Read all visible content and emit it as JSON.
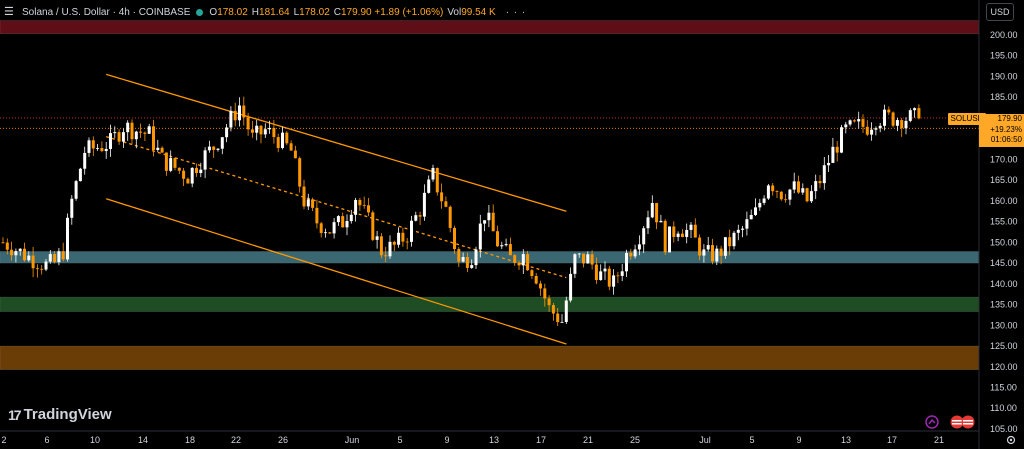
{
  "header": {
    "menu_icon": "hamburger-icon",
    "symbol_title": "Solana / U.S. Dollar · 4h · COINBASE",
    "status_color": "#26a69a",
    "ohlc": [
      {
        "label": "O",
        "value": "178.02"
      },
      {
        "label": "H",
        "value": "181.64"
      },
      {
        "label": "L",
        "value": "178.02"
      },
      {
        "label": "C",
        "value": "179.90 +1.89 (+1.06%)"
      },
      {
        "label": "Vol",
        "value": "99.54 K"
      }
    ],
    "more_label": "· · ·"
  },
  "price_scale": {
    "currency_button": "USD",
    "labels": [
      "200.00",
      "195.00",
      "190.00",
      "185.00",
      "180.00",
      "175.00",
      "170.00",
      "165.00",
      "160.00",
      "155.00",
      "150.00",
      "145.00",
      "140.00",
      "135.00",
      "130.00",
      "125.00",
      "120.00",
      "115.00",
      "110.00",
      "105.00"
    ]
  },
  "price_tag": {
    "symbol": "SOLUSD",
    "price": "179.90",
    "change": "+19.23%",
    "countdown": "01:06:50"
  },
  "time_axis": {
    "labels": [
      "2",
      "6",
      "10",
      "14",
      "18",
      "22",
      "26",
      "Jun",
      "5",
      "9",
      "13",
      "17",
      "21",
      "25",
      "Jul",
      "5",
      "9",
      "13",
      "17",
      "21"
    ],
    "settings_icon": "gear-icon"
  },
  "branding": {
    "logo_icon": "tradingview-logo-icon",
    "name": "TradingView"
  },
  "overlay_icons": [
    "purple-replay-icon",
    "flags-icon"
  ],
  "colors": {
    "background": "#000000",
    "bull": "#ffffff",
    "bear": "#ff9800",
    "channel": "#ff9800",
    "zone_red": "#5e0e17",
    "zone_teal": "#3a6772",
    "zone_green": "#1e4d24",
    "zone_orange": "#6b3d06"
  },
  "chart_data": {
    "type": "candlestick",
    "symbol": "Solana / U.S. Dollar",
    "interval": "4h",
    "exchange": "COINBASE",
    "ylim": [
      105,
      203
    ],
    "x_ticks": [
      "2",
      "6",
      "10",
      "14",
      "18",
      "22",
      "26",
      "Jun",
      "5",
      "9",
      "13",
      "17",
      "21",
      "25",
      "Jul",
      "5",
      "9",
      "13",
      "17",
      "21"
    ],
    "last_close": 179.9,
    "zones": [
      {
        "name": "resistance",
        "from": 200.3,
        "to": 203.5,
        "color": "#5e0e17"
      },
      {
        "name": "support-1",
        "from": 145.0,
        "to": 147.8,
        "color": "#3a6772"
      },
      {
        "name": "support-2",
        "from": 133.3,
        "to": 136.8,
        "color": "#1e4d24"
      },
      {
        "name": "support-3",
        "from": 119.3,
        "to": 125.0,
        "color": "#6b3d06"
      }
    ],
    "channel": {
      "upper": [
        [
          24,
          190.5
        ],
        [
          131,
          157.5
        ]
      ],
      "lower": [
        [
          24,
          160.5
        ],
        [
          131,
          125.5
        ]
      ],
      "mid": [
        [
          24,
          175.5
        ],
        [
          131,
          141.5
        ]
      ]
    },
    "price_lines": [
      180.0,
      177.5
    ],
    "trend_path": [
      [
        0,
        150
      ],
      [
        2,
        149
      ],
      [
        5,
        147
      ],
      [
        8,
        145.5
      ],
      [
        10,
        144.5
      ],
      [
        12,
        145
      ],
      [
        14,
        148
      ],
      [
        16,
        160
      ],
      [
        19,
        172
      ],
      [
        22,
        173
      ],
      [
        25,
        174
      ],
      [
        28,
        178
      ],
      [
        31,
        177
      ],
      [
        34,
        176
      ],
      [
        37,
        170
      ],
      [
        40,
        168
      ],
      [
        43,
        166
      ],
      [
        46,
        170
      ],
      [
        49,
        173
      ],
      [
        52,
        178
      ],
      [
        55,
        183
      ],
      [
        58,
        175
      ],
      [
        61,
        177
      ],
      [
        64,
        175
      ],
      [
        67,
        172
      ],
      [
        70,
        160
      ],
      [
        73,
        155
      ],
      [
        76,
        153
      ],
      [
        79,
        155
      ],
      [
        82,
        161
      ],
      [
        85,
        155
      ],
      [
        88,
        148
      ],
      [
        91,
        149
      ],
      [
        94,
        152
      ],
      [
        97,
        158
      ],
      [
        100,
        166
      ],
      [
        103,
        158
      ],
      [
        106,
        145
      ],
      [
        109,
        147
      ],
      [
        112,
        157
      ],
      [
        115,
        150
      ],
      [
        118,
        146
      ],
      [
        121,
        147
      ],
      [
        124,
        142
      ],
      [
        127,
        134
      ],
      [
        130,
        131
      ],
      [
        133,
        146
      ],
      [
        136,
        146
      ],
      [
        139,
        142
      ],
      [
        142,
        140
      ],
      [
        145,
        147
      ],
      [
        148,
        152
      ],
      [
        151,
        160
      ],
      [
        154,
        150
      ],
      [
        157,
        154
      ],
      [
        160,
        152
      ],
      [
        163,
        147
      ],
      [
        166,
        147
      ],
      [
        169,
        150
      ],
      [
        172,
        153
      ],
      [
        175,
        157
      ],
      [
        178,
        165
      ],
      [
        181,
        162
      ],
      [
        184,
        163
      ],
      [
        187,
        160
      ],
      [
        190,
        165
      ],
      [
        193,
        172
      ],
      [
        196,
        177
      ],
      [
        199,
        178
      ],
      [
        201,
        178
      ],
      [
        203,
        180
      ]
    ]
  }
}
